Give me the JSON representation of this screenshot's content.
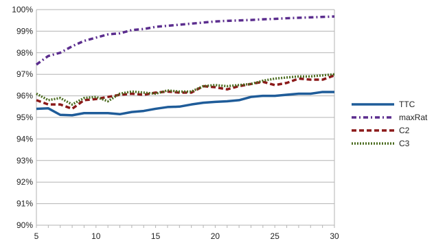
{
  "chart_data": {
    "type": "line",
    "title": "",
    "xlabel": "",
    "ylabel": "",
    "xlim": [
      5,
      30
    ],
    "ylim": [
      90,
      100
    ],
    "x_ticks": [
      5,
      10,
      15,
      20,
      25,
      30
    ],
    "x_tick_labels": [
      "5",
      "10",
      "15",
      "20",
      "25",
      "30"
    ],
    "y_ticks": [
      90,
      91,
      92,
      93,
      94,
      95,
      96,
      97,
      98,
      99,
      100
    ],
    "y_tick_labels": [
      "90%",
      "91%",
      "92%",
      "93%",
      "94%",
      "95%",
      "96%",
      "97%",
      "98%",
      "99%",
      "100%"
    ],
    "grid": "horizontal",
    "legend_position": "right",
    "x": [
      5,
      6,
      7,
      8,
      9,
      10,
      11,
      12,
      13,
      14,
      15,
      16,
      17,
      18,
      19,
      20,
      21,
      22,
      23,
      24,
      25,
      26,
      27,
      28,
      29,
      30
    ],
    "series": [
      {
        "name": "TTC",
        "color": "#1f5c99",
        "style": "solid",
        "values": [
          95.4,
          95.42,
          95.12,
          95.1,
          95.2,
          95.2,
          95.2,
          95.15,
          95.25,
          95.3,
          95.4,
          95.48,
          95.5,
          95.6,
          95.68,
          95.72,
          95.75,
          95.8,
          95.95,
          96.0,
          96.0,
          96.05,
          96.1,
          96.1,
          96.18,
          96.18
        ]
      },
      {
        "name": "maxRat",
        "color": "#5b2d8e",
        "style": "dash-dot",
        "values": [
          97.45,
          97.85,
          98.0,
          98.3,
          98.55,
          98.7,
          98.85,
          98.9,
          99.05,
          99.1,
          99.2,
          99.25,
          99.3,
          99.35,
          99.4,
          99.45,
          99.48,
          99.5,
          99.52,
          99.55,
          99.57,
          99.6,
          99.62,
          99.64,
          99.66,
          99.68
        ]
      },
      {
        "name": "C2",
        "color": "#8b1a1a",
        "style": "dashed",
        "values": [
          95.8,
          95.6,
          95.6,
          95.4,
          95.8,
          95.85,
          95.95,
          96.05,
          96.1,
          96.05,
          96.15,
          96.2,
          96.15,
          96.15,
          96.45,
          96.4,
          96.3,
          96.45,
          96.55,
          96.65,
          96.5,
          96.6,
          96.8,
          96.75,
          96.75,
          96.95
        ]
      },
      {
        "name": "C3",
        "color": "#4a6b1e",
        "style": "dotted",
        "values": [
          96.1,
          95.8,
          95.9,
          95.6,
          95.9,
          95.95,
          95.75,
          96.1,
          96.2,
          96.15,
          96.1,
          96.25,
          96.2,
          96.2,
          96.45,
          96.5,
          96.45,
          96.5,
          96.55,
          96.7,
          96.8,
          96.85,
          96.9,
          96.9,
          96.95,
          97.0
        ]
      }
    ]
  }
}
